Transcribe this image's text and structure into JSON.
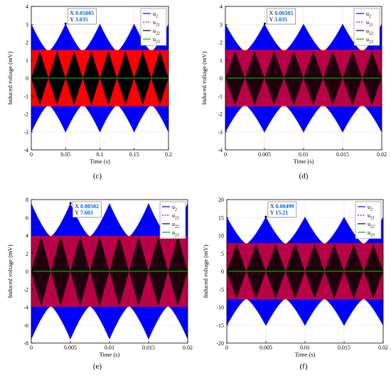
{
  "chart_data": [
    {
      "type": "line",
      "panel": "c",
      "caption": "(c)",
      "xlabel": "Time (s)",
      "ylabel": "Induced voltage (mV)",
      "xlim": [
        0,
        0.2
      ],
      "ylim": [
        -4,
        4
      ],
      "xticks": [
        "0",
        "0.05",
        "0.1",
        "0.15",
        "0.2"
      ],
      "yticks": [
        "-4",
        "-3",
        "-2",
        "-1",
        "0",
        "1",
        "2",
        "3",
        "4"
      ],
      "grid": true,
      "legend": "top-right",
      "series": [
        {
          "name": "u2",
          "label_main": "u",
          "label_sub": "2",
          "color": "#0000ff",
          "style": "envelope",
          "amplitude_max": 3.035,
          "amplitude_min": 1.5,
          "beat_period": 0.05
        },
        {
          "name": "u21",
          "label_main": "u",
          "label_sub": "21",
          "color": "#ff0000",
          "style": "band",
          "amplitude": 1.55
        },
        {
          "name": "u22",
          "label_main": "u",
          "label_sub": "22",
          "color": "#000000",
          "style": "diamonds",
          "amplitude": 1.5,
          "diamond_period": 0.025
        },
        {
          "name": "u23",
          "label_main": "u",
          "label_sub": "23",
          "color": "#00aa00",
          "style": "flat",
          "amplitude": 0
        }
      ],
      "datatip": {
        "x_label": "X",
        "x_value": "0.05005",
        "y_label": "Y",
        "y_value": "3.035"
      }
    },
    {
      "type": "line",
      "panel": "d",
      "caption": "(d)",
      "xlabel": "Time (s)",
      "ylabel": "Induced voltage (mV)",
      "xlim": [
        0,
        0.02
      ],
      "ylim": [
        -4,
        4
      ],
      "xticks": [
        "0",
        "0.005",
        "0.01",
        "0.015",
        "0.02"
      ],
      "yticks": [
        "-4",
        "-3",
        "-2",
        "-1",
        "0",
        "1",
        "2",
        "3",
        "4"
      ],
      "grid": true,
      "legend": "top-right",
      "series": [
        {
          "name": "u2",
          "label_main": "u",
          "label_sub": "2",
          "color": "#0000ff",
          "style": "envelope",
          "amplitude_max": 3.035,
          "amplitude_min": 1.5,
          "beat_period": 0.005
        },
        {
          "name": "u21",
          "label_main": "u",
          "label_sub": "21",
          "color": "#ff0000",
          "style": "band",
          "amplitude": 1.55
        },
        {
          "name": "u22",
          "label_main": "u",
          "label_sub": "22",
          "color": "#000000",
          "style": "diamonds",
          "amplitude": 1.5,
          "diamond_period": 0.0025
        },
        {
          "name": "u23",
          "label_main": "u",
          "label_sub": "23",
          "color": "#00aa00",
          "style": "flat",
          "amplitude": 0
        }
      ],
      "datatip": {
        "x_label": "X",
        "x_value": "0.00505",
        "y_label": "Y",
        "y_value": "3.035"
      }
    },
    {
      "type": "line",
      "panel": "e",
      "caption": "(e)",
      "xlabel": "Time (s)",
      "ylabel": "Induced voltage (mV)",
      "xlim": [
        0,
        0.02
      ],
      "ylim": [
        -8,
        8
      ],
      "xticks": [
        "0",
        "0.005",
        "0.01",
        "0.015",
        "0.02"
      ],
      "yticks": [
        "-8",
        "-6",
        "-4",
        "-2",
        "0",
        "2",
        "4",
        "6",
        "8"
      ],
      "grid": true,
      "legend": "top-right",
      "series": [
        {
          "name": "u2",
          "label_main": "u",
          "label_sub": "2",
          "color": "#0000ff",
          "style": "envelope",
          "amplitude_max": 7.603,
          "amplitude_min": 3.9,
          "beat_period": 0.005
        },
        {
          "name": "u21",
          "label_main": "u",
          "label_sub": "21",
          "color": "#ff0000",
          "style": "band",
          "amplitude": 3.9
        },
        {
          "name": "u22",
          "label_main": "u",
          "label_sub": "22",
          "color": "#000000",
          "style": "diamonds",
          "amplitude": 3.9,
          "diamond_period": 0.0025
        },
        {
          "name": "u23",
          "label_main": "u",
          "label_sub": "23",
          "color": "#00aa00",
          "style": "flat",
          "amplitude": 0
        }
      ],
      "datatip": {
        "x_label": "X",
        "x_value": "0.00502",
        "y_label": "Y",
        "y_value": "7.603"
      }
    },
    {
      "type": "line",
      "panel": "f",
      "caption": "(f)",
      "xlabel": "Time (s)",
      "ylabel": "Induced voltage (mV)",
      "xlim": [
        0,
        0.02
      ],
      "ylim": [
        -20,
        20
      ],
      "xticks": [
        "0",
        "0.005",
        "0.01",
        "0.015",
        "0.02"
      ],
      "yticks": [
        "-20",
        "-15",
        "-10",
        "-5",
        "0",
        "5",
        "10",
        "15",
        "20"
      ],
      "grid": true,
      "legend": "top-right",
      "series": [
        {
          "name": "u2",
          "label_main": "u",
          "label_sub": "2",
          "color": "#0000ff",
          "style": "envelope",
          "amplitude_max": 15.21,
          "amplitude_min": 7.7,
          "beat_period": 0.005
        },
        {
          "name": "u21",
          "label_main": "u",
          "label_sub": "21",
          "color": "#ff0000",
          "style": "band",
          "amplitude": 7.7
        },
        {
          "name": "u22",
          "label_main": "u",
          "label_sub": "22",
          "color": "#000000",
          "style": "diamonds",
          "amplitude": 7.6,
          "diamond_period": 0.0025
        },
        {
          "name": "u23",
          "label_main": "u",
          "label_sub": "23",
          "color": "#00aa00",
          "style": "flat",
          "amplitude": 0
        }
      ],
      "datatip": {
        "x_label": "X",
        "x_value": "0.00499",
        "y_label": "Y",
        "y_value": "15.21"
      }
    }
  ]
}
